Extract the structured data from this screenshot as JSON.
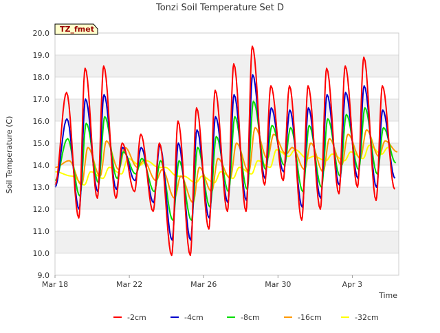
{
  "chart_data": {
    "type": "line",
    "title": "Tonzi Soil Temperature Set D",
    "xlabel": "Time",
    "ylabel": "Soil Temperature (C)",
    "annotation": "TZ_fmet",
    "ylim": [
      9.0,
      20.0
    ],
    "xlim": [
      "Mar 18",
      "Apr 5"
    ],
    "yticks": [
      "9.0",
      "10.0",
      "11.0",
      "12.0",
      "13.0",
      "14.0",
      "15.0",
      "16.0",
      "17.0",
      "18.0",
      "19.0",
      "20.0"
    ],
    "xticks": [
      {
        "label": "Mar 18",
        "day": 0
      },
      {
        "label": "Mar 22",
        "day": 4
      },
      {
        "label": "Mar 26",
        "day": 8
      },
      {
        "label": "Mar 30",
        "day": 12
      },
      {
        "label": "Apr 3",
        "day": 16
      }
    ],
    "grid": "horizontal bands",
    "legend_position": "bottom",
    "daily_extremes_note": "Each series oscillates daily; values listed are the approximate daily max and min readings in degrees C, one per day starting Mar 18.",
    "series": [
      {
        "name": "-2cm",
        "color": "#ff0000",
        "start": 13.1,
        "daily_max": [
          17.3,
          18.4,
          18.5,
          15.0,
          15.4,
          15.0,
          16.0,
          16.6,
          17.4,
          18.6,
          19.4,
          17.6,
          17.6,
          17.6,
          18.4,
          18.5,
          18.9,
          17.6
        ],
        "daily_min": [
          11.6,
          12.5,
          12.5,
          12.8,
          11.9,
          9.9,
          9.9,
          11.1,
          11.9,
          11.9,
          13.1,
          13.3,
          11.5,
          12.0,
          12.7,
          13.0,
          12.4,
          12.9
        ]
      },
      {
        "name": "-4cm",
        "color": "#0000cc",
        "start": 13.0,
        "daily_max": [
          16.1,
          17.0,
          17.2,
          14.8,
          14.8,
          14.9,
          15.0,
          15.6,
          16.2,
          17.2,
          18.1,
          16.6,
          16.5,
          16.6,
          17.2,
          17.3,
          17.6,
          16.5
        ],
        "daily_min": [
          12.0,
          12.8,
          12.9,
          13.3,
          12.3,
          10.6,
          10.6,
          11.6,
          12.3,
          12.4,
          13.4,
          13.7,
          12.1,
          12.5,
          13.1,
          13.4,
          13.0,
          13.4
        ]
      },
      {
        "name": "-8cm",
        "color": "#00dd00",
        "start": 13.3,
        "daily_max": [
          15.2,
          15.9,
          16.2,
          14.6,
          14.3,
          14.2,
          14.2,
          14.8,
          15.3,
          16.2,
          16.9,
          15.8,
          15.7,
          15.8,
          16.1,
          16.3,
          16.6,
          15.7
        ],
        "daily_min": [
          12.6,
          13.2,
          13.4,
          13.6,
          12.8,
          11.5,
          11.5,
          12.1,
          12.8,
          12.9,
          13.8,
          14.0,
          12.8,
          13.0,
          13.5,
          13.8,
          13.6,
          14.1
        ]
      },
      {
        "name": "-16cm",
        "color": "#ff9900",
        "start": 13.9,
        "daily_max": [
          14.2,
          14.8,
          15.1,
          14.8,
          14.2,
          13.8,
          13.5,
          13.9,
          14.3,
          15.0,
          15.7,
          15.4,
          14.8,
          15.0,
          15.2,
          15.4,
          15.6,
          15.1
        ],
        "daily_min": [
          13.1,
          13.5,
          13.8,
          13.9,
          13.3,
          12.5,
          12.3,
          12.8,
          13.4,
          13.7,
          14.3,
          14.5,
          13.8,
          13.7,
          14.0,
          14.3,
          14.4,
          14.6
        ]
      },
      {
        "name": "-32cm",
        "color": "#ffff00",
        "start": 13.7,
        "daily_max": [
          13.5,
          13.7,
          13.9,
          14.3,
          14.2,
          13.9,
          13.5,
          13.5,
          13.7,
          13.9,
          14.2,
          14.7,
          14.7,
          14.4,
          14.5,
          14.6,
          14.9,
          14.8
        ],
        "daily_min": [
          13.1,
          13.4,
          13.6,
          14.0,
          13.9,
          13.5,
          13.2,
          13.2,
          13.4,
          13.6,
          13.9,
          14.4,
          14.3,
          14.2,
          14.2,
          14.3,
          14.5,
          14.6
        ]
      }
    ]
  }
}
